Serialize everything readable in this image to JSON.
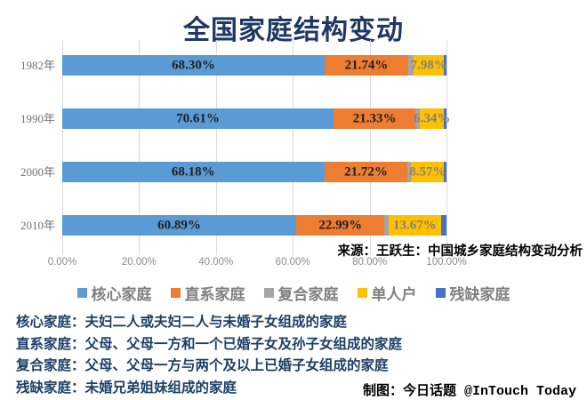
{
  "title": "全国家庭结构变动",
  "source_note": "来源：王跃生：中国城乡家庭结构变动分析",
  "credit": "制图：今日话题 @InTouch Today",
  "colors": {
    "nuclear_blue": "#5B9BD5",
    "lineal_orange": "#ED7D31",
    "composite_gray": "#A5A5A5",
    "single_yellow": "#FFC000",
    "incomplete_darkblue": "#4472C4",
    "title_text": "#1F3864",
    "definitions_text": "#1B3F66",
    "gridline": "#D9D9D9"
  },
  "x_axis": {
    "ticks": [
      "0.00%",
      "20.00%",
      "40.00%",
      "60.00%",
      "80.00%",
      "100.00%"
    ],
    "min": 0,
    "max": 100
  },
  "legend": {
    "position": "bottom",
    "items": [
      {
        "label": "核心家庭",
        "color": "#5B9BD5"
      },
      {
        "label": "直系家庭",
        "color": "#ED7D31"
      },
      {
        "label": "复合家庭",
        "color": "#A5A5A5"
      },
      {
        "label": "单人户",
        "color": "#FFC000"
      },
      {
        "label": "残缺家庭",
        "color": "#4472C4"
      }
    ]
  },
  "definitions": [
    "核心家庭：夫妇二人或夫妇二人与未婚子女组成的家庭",
    "直系家庭：父母、父母一方和一个已婚子女及孙子女组成的家庭",
    "复合家庭：父母、父母一方与两个及以上已婚子女组成的家庭",
    "残缺家庭：未婚兄弟姐妹组成的家庭"
  ],
  "chart_data": {
    "type": "bar",
    "orientation": "horizontal",
    "stacked": true,
    "title": "全国家庭结构变动",
    "categories": [
      "1982年",
      "1990年",
      "2000年",
      "2010年"
    ],
    "series": [
      {
        "name": "核心家庭",
        "color": "#5B9BD5",
        "label_color": "#1F1F1F",
        "values": [
          68.3,
          70.61,
          68.18,
          60.89
        ],
        "labels": [
          "68.30%",
          "70.61%",
          "68.18%",
          "60.89%"
        ]
      },
      {
        "name": "直系家庭",
        "color": "#ED7D31",
        "label_color": "#1F1F1F",
        "values": [
          21.74,
          21.33,
          21.72,
          22.99
        ],
        "labels": [
          "21.74%",
          "21.33%",
          "21.72%",
          "22.99%"
        ]
      },
      {
        "name": "复合家庭",
        "color": "#A5A5A5",
        "label_color": "#7F7F7F",
        "values": [
          1.4,
          1.12,
          0.93,
          1.05
        ],
        "labels": [
          "",
          "",
          "",
          ""
        ]
      },
      {
        "name": "单人户",
        "color": "#FFC000",
        "label_color": "#808080",
        "values": [
          7.98,
          6.34,
          8.57,
          13.67
        ],
        "labels": [
          "7.98%",
          "6.34%",
          "8.57%",
          "13.67%"
        ]
      },
      {
        "name": "残缺家庭",
        "color": "#4472C4",
        "label_color": "#FFFFFF",
        "values": [
          0.58,
          0.6,
          0.6,
          1.4
        ],
        "labels": [
          "",
          "",
          "",
          ""
        ]
      }
    ],
    "xlim": [
      0,
      100
    ],
    "grid": true,
    "legend_position": "bottom"
  }
}
